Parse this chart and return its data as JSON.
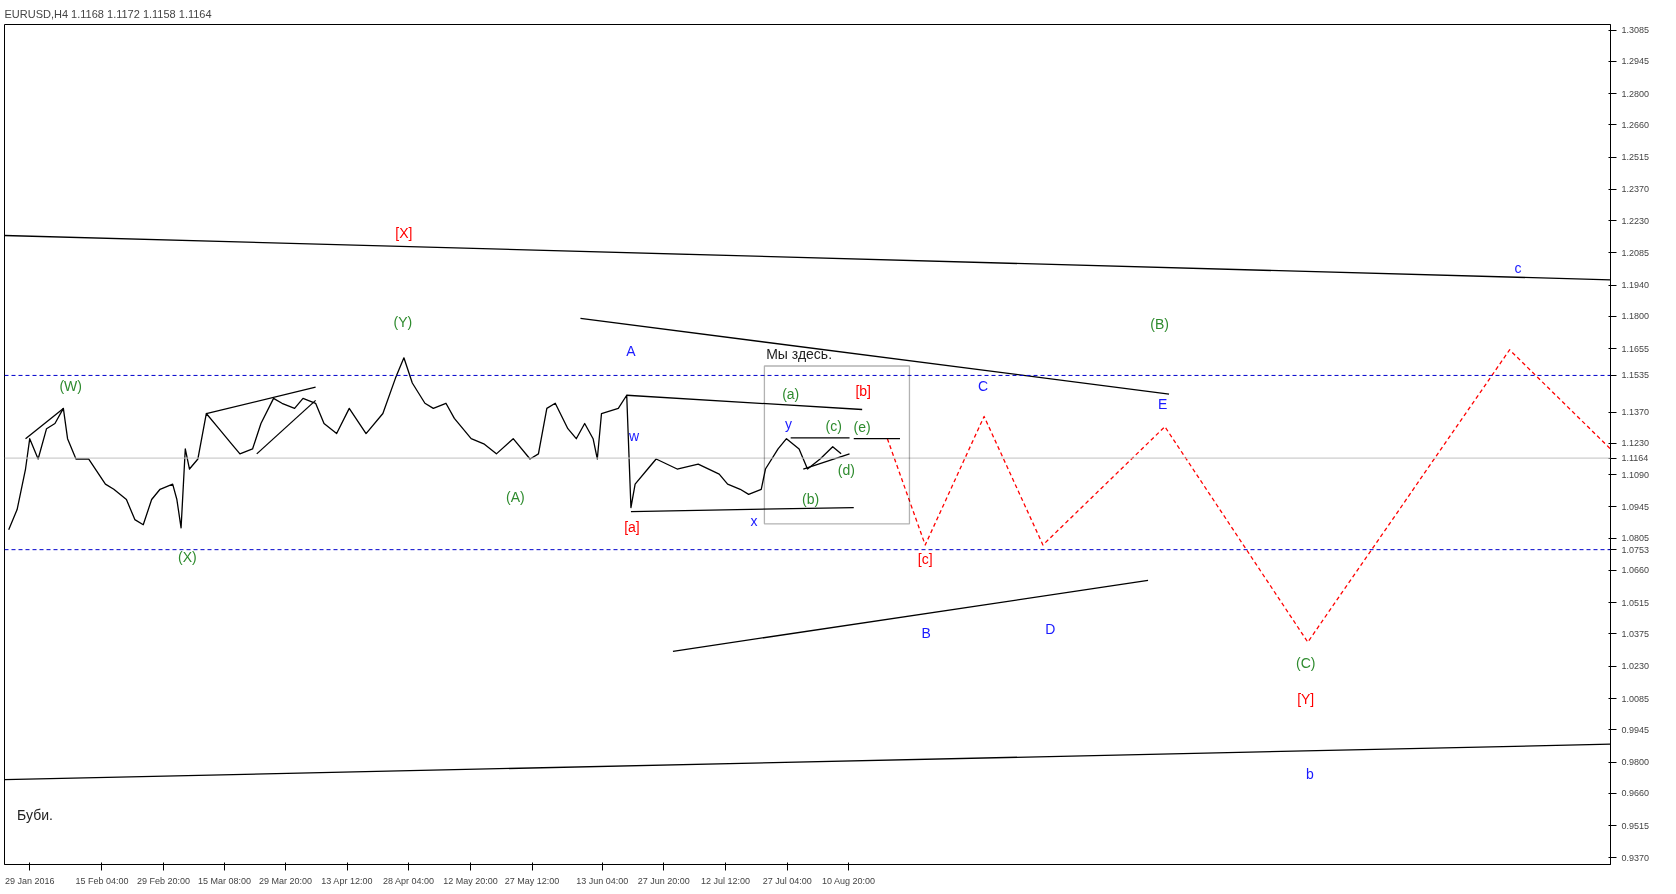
{
  "chart_data": {
    "type": "line",
    "title": "EURUSD,H4  1.1168 1.1172 1.1158 1.1164",
    "xlim": [
      "2016-01-23",
      "2017-02-08"
    ],
    "ylim": [
      0.934,
      1.311
    ],
    "xticks": [
      {
        "value": "2016-01-29T00:00",
        "label": "29 Jan 2016"
      },
      {
        "value": "2016-02-15T04:00",
        "label": "15 Feb 04:00"
      },
      {
        "value": "2016-02-29T20:00",
        "label": "29 Feb 20:00"
      },
      {
        "value": "2016-03-15T08:00",
        "label": "15 Mar 08:00"
      },
      {
        "value": "2016-03-29T20:00",
        "label": "29 Mar 20:00"
      },
      {
        "value": "2016-04-13T12:00",
        "label": "13 Apr 12:00"
      },
      {
        "value": "2016-04-28T04:00",
        "label": "28 Apr 04:00"
      },
      {
        "value": "2016-05-12T20:00",
        "label": "12 May 20:00"
      },
      {
        "value": "2016-05-27T12:00",
        "label": "27 May 12:00"
      },
      {
        "value": "2016-06-13T04:00",
        "label": "13 Jun 04:00"
      },
      {
        "value": "2016-06-27T20:00",
        "label": "27 Jun 20:00"
      },
      {
        "value": "2016-07-12T12:00",
        "label": "12 Jul 12:00"
      },
      {
        "value": "2016-07-27T04:00",
        "label": "27 Jul 04:00"
      },
      {
        "value": "2016-08-10T20:00",
        "label": "10 Aug 20:00"
      }
    ],
    "yticks": [
      {
        "value": 1.3085,
        "label": "1.3085"
      },
      {
        "value": 1.2945,
        "label": "1.2945"
      },
      {
        "value": 1.28,
        "label": "1.2800"
      },
      {
        "value": 1.266,
        "label": "1.2660"
      },
      {
        "value": 1.2515,
        "label": "1.2515"
      },
      {
        "value": 1.237,
        "label": "1.2370"
      },
      {
        "value": 1.223,
        "label": "1.2230"
      },
      {
        "value": 1.2085,
        "label": "1.2085"
      },
      {
        "value": 1.194,
        "label": "1.1940"
      },
      {
        "value": 1.18,
        "label": "1.1800"
      },
      {
        "value": 1.1655,
        "label": "1.1655"
      },
      {
        "value": 1.137,
        "label": "1.1370"
      },
      {
        "value": 1.123,
        "label": "1.1230"
      },
      {
        "value": 1.109,
        "label": "1.1090"
      },
      {
        "value": 1.0945,
        "label": "1.0945"
      },
      {
        "value": 1.0805,
        "label": "1.0805"
      },
      {
        "value": 1.066,
        "label": "1.0660"
      },
      {
        "value": 1.0515,
        "label": "1.0515"
      },
      {
        "value": 1.0375,
        "label": "1.0375"
      },
      {
        "value": 1.023,
        "label": "1.0230"
      },
      {
        "value": 1.0085,
        "label": "1.0085"
      },
      {
        "value": 0.9945,
        "label": "0.9945"
      },
      {
        "value": 0.98,
        "label": "0.9800"
      },
      {
        "value": 0.966,
        "label": "0.9660"
      },
      {
        "value": 0.9515,
        "label": "0.9515"
      },
      {
        "value": 0.937,
        "label": "0.9370"
      }
    ],
    "grid": false,
    "series": [
      {
        "color": "#000000",
        "line_style": "solid",
        "x": [
          "2016-01-24",
          "2016-01-26",
          "2016-01-28",
          "2016-01-29",
          "2016-01-31",
          "2016-02-02",
          "2016-02-04",
          "2016-02-06",
          "2016-02-07",
          "2016-02-09",
          "2016-02-12",
          "2016-02-16",
          "2016-02-18",
          "2016-02-21",
          "2016-02-23",
          "2016-02-25",
          "2016-02-27",
          "2016-02-29",
          "2016-03-03",
          "2016-03-04",
          "2016-03-05",
          "2016-03-06",
          "2016-03-07",
          "2016-03-09",
          "2016-03-11",
          "2016-03-14",
          "2016-03-17",
          "2016-03-19",
          "2016-03-22",
          "2016-03-24",
          "2016-03-27",
          "2016-03-29",
          "2016-04-01",
          "2016-04-03",
          "2016-04-06",
          "2016-04-08",
          "2016-04-11",
          "2016-04-14",
          "2016-04-18",
          "2016-04-22",
          "2016-04-25",
          "2016-04-27",
          "2016-04-29",
          "2016-05-02",
          "2016-05-04",
          "2016-05-07",
          "2016-05-09",
          "2016-05-13",
          "2016-05-16",
          "2016-05-19",
          "2016-05-23",
          "2016-05-27",
          "2016-05-29",
          "2016-05-31",
          "2016-06-02",
          "2016-06-05",
          "2016-06-07",
          "2016-06-09",
          "2016-06-11",
          "2016-06-12",
          "2016-06-13",
          "2016-06-17",
          "2016-06-19",
          "2016-06-20",
          "2016-06-21",
          "2016-06-24",
          "2016-06-26",
          "2016-07-01",
          "2016-07-06",
          "2016-07-11",
          "2016-07-13",
          "2016-07-16",
          "2016-07-18",
          "2016-07-21",
          "2016-07-22",
          "2016-07-25",
          "2016-07-27",
          "2016-07-30",
          "2016-08-01",
          "2016-08-04",
          "2016-08-07",
          "2016-08-09"
        ],
        "values": [
          1.0842,
          1.0933,
          1.1115,
          1.1251,
          1.116,
          1.1296,
          1.1319,
          1.1387,
          1.1251,
          1.116,
          1.116,
          1.1047,
          1.1024,
          1.0978,
          1.0888,
          1.0865,
          1.0978,
          1.1024,
          1.1047,
          1.0978,
          1.0851,
          1.1205,
          1.1115,
          1.116,
          1.1364,
          1.1296,
          1.1228,
          1.1183,
          1.1205,
          1.1319,
          1.1432,
          1.141,
          1.1387,
          1.1432,
          1.141,
          1.1319,
          1.1274,
          1.1387,
          1.1274,
          1.1364,
          1.1523,
          1.1614,
          1.1501,
          1.141,
          1.1387,
          1.141,
          1.1342,
          1.1251,
          1.1228,
          1.1183,
          1.1251,
          1.116,
          1.1183,
          1.1387,
          1.141,
          1.1296,
          1.1251,
          1.1319,
          1.1251,
          1.116,
          1.1364,
          1.1387,
          1.1446,
          1.0942,
          1.1047,
          1.1115,
          1.116,
          1.1115,
          1.1137,
          1.1092,
          1.1047,
          1.1024,
          1.1001,
          1.1024,
          1.1115,
          1.1205,
          1.1251,
          1.1205,
          1.1115,
          1.116,
          1.1215,
          1.1183
        ]
      },
      {
        "color": "#ff0000",
        "line_style": "dashed",
        "x": [
          "2016-08-20",
          "2016-08-29",
          "2016-09-12",
          "2016-09-26",
          "2016-10-25",
          "2016-11-28",
          "2017-01-15",
          "2017-02-08"
        ],
        "values": [
          1.1251,
          1.0774,
          1.1351,
          1.0774,
          1.1305,
          1.0338,
          1.165,
          1.1205
        ]
      },
      {
        "color": "#000000",
        "line_style": "solid",
        "x": [
          "2016-01-23",
          "2017-02-08"
        ],
        "values": [
          1.2163,
          1.1964
        ]
      },
      {
        "color": "#000000",
        "line_style": "solid",
        "x": [
          "2016-01-23",
          "2017-02-08"
        ],
        "values": [
          0.9721,
          0.988
        ]
      },
      {
        "color": "#000000",
        "line_style": "solid",
        "x": [
          "2016-06-08",
          "2016-10-26"
        ],
        "values": [
          1.1791,
          1.1451
        ]
      },
      {
        "color": "#000000",
        "line_style": "solid",
        "x": [
          "2016-06-30",
          "2016-10-21"
        ],
        "values": [
          1.0297,
          1.0615
        ]
      },
      {
        "color": "#000000",
        "line_style": "solid",
        "x": [
          "2016-06-19",
          "2016-08-14"
        ],
        "values": [
          1.1446,
          1.1382
        ]
      },
      {
        "color": "#000000",
        "line_style": "solid",
        "x": [
          "2016-06-20",
          "2016-08-12"
        ],
        "values": [
          1.0924,
          1.0942
        ]
      },
      {
        "color": "#000000",
        "line_style": "solid",
        "x": [
          "2016-03-11",
          "2016-04-06"
        ],
        "values": [
          1.1364,
          1.1482
        ]
      },
      {
        "color": "#000000",
        "line_style": "solid",
        "x": [
          "2016-03-23",
          "2016-04-06"
        ],
        "values": [
          1.1183,
          1.1423
        ]
      },
      {
        "color": "#000000",
        "line_style": "solid",
        "x": [
          "2016-01-28",
          "2016-02-06"
        ],
        "values": [
          1.1251,
          1.1387
        ]
      },
      {
        "color": "#000000",
        "line_style": "solid",
        "x": [
          "2016-07-28",
          "2016-08-11"
        ],
        "values": [
          1.1255,
          1.1255
        ]
      },
      {
        "color": "#000000",
        "line_style": "solid",
        "x": [
          "2016-07-31",
          "2016-08-11"
        ],
        "values": [
          1.1115,
          1.1183
        ]
      },
      {
        "color": "#000000",
        "line_style": "solid",
        "x": [
          "2016-08-12",
          "2016-08-23"
        ],
        "values": [
          1.1251,
          1.1251
        ]
      }
    ],
    "ref_lines": [
      {
        "axis": "y",
        "value": 1.1535,
        "label": "1.1535",
        "color": "#0000cc",
        "line_style": "dashed"
      },
      {
        "axis": "y",
        "value": 1.0753,
        "label": "1.0753",
        "color": "#0000cc",
        "line_style": "dashed"
      },
      {
        "axis": "y",
        "value": 1.1164,
        "label": "1.1164",
        "color": "#c0c0c0",
        "line_style": "solid"
      }
    ],
    "annotations": [
      "[X]",
      "(Y)",
      "(W)",
      "(X)",
      "(A)",
      "A",
      "w",
      "[a]",
      "x",
      "Мы здесь.",
      "(a)",
      "[b]",
      "y",
      "(c)",
      "(e)",
      "(d)",
      "(b)",
      "C",
      "E",
      "(B)",
      "c",
      "[c]",
      "B",
      "D",
      "(C)",
      "[Y]",
      "b",
      "Буби."
    ]
  }
}
